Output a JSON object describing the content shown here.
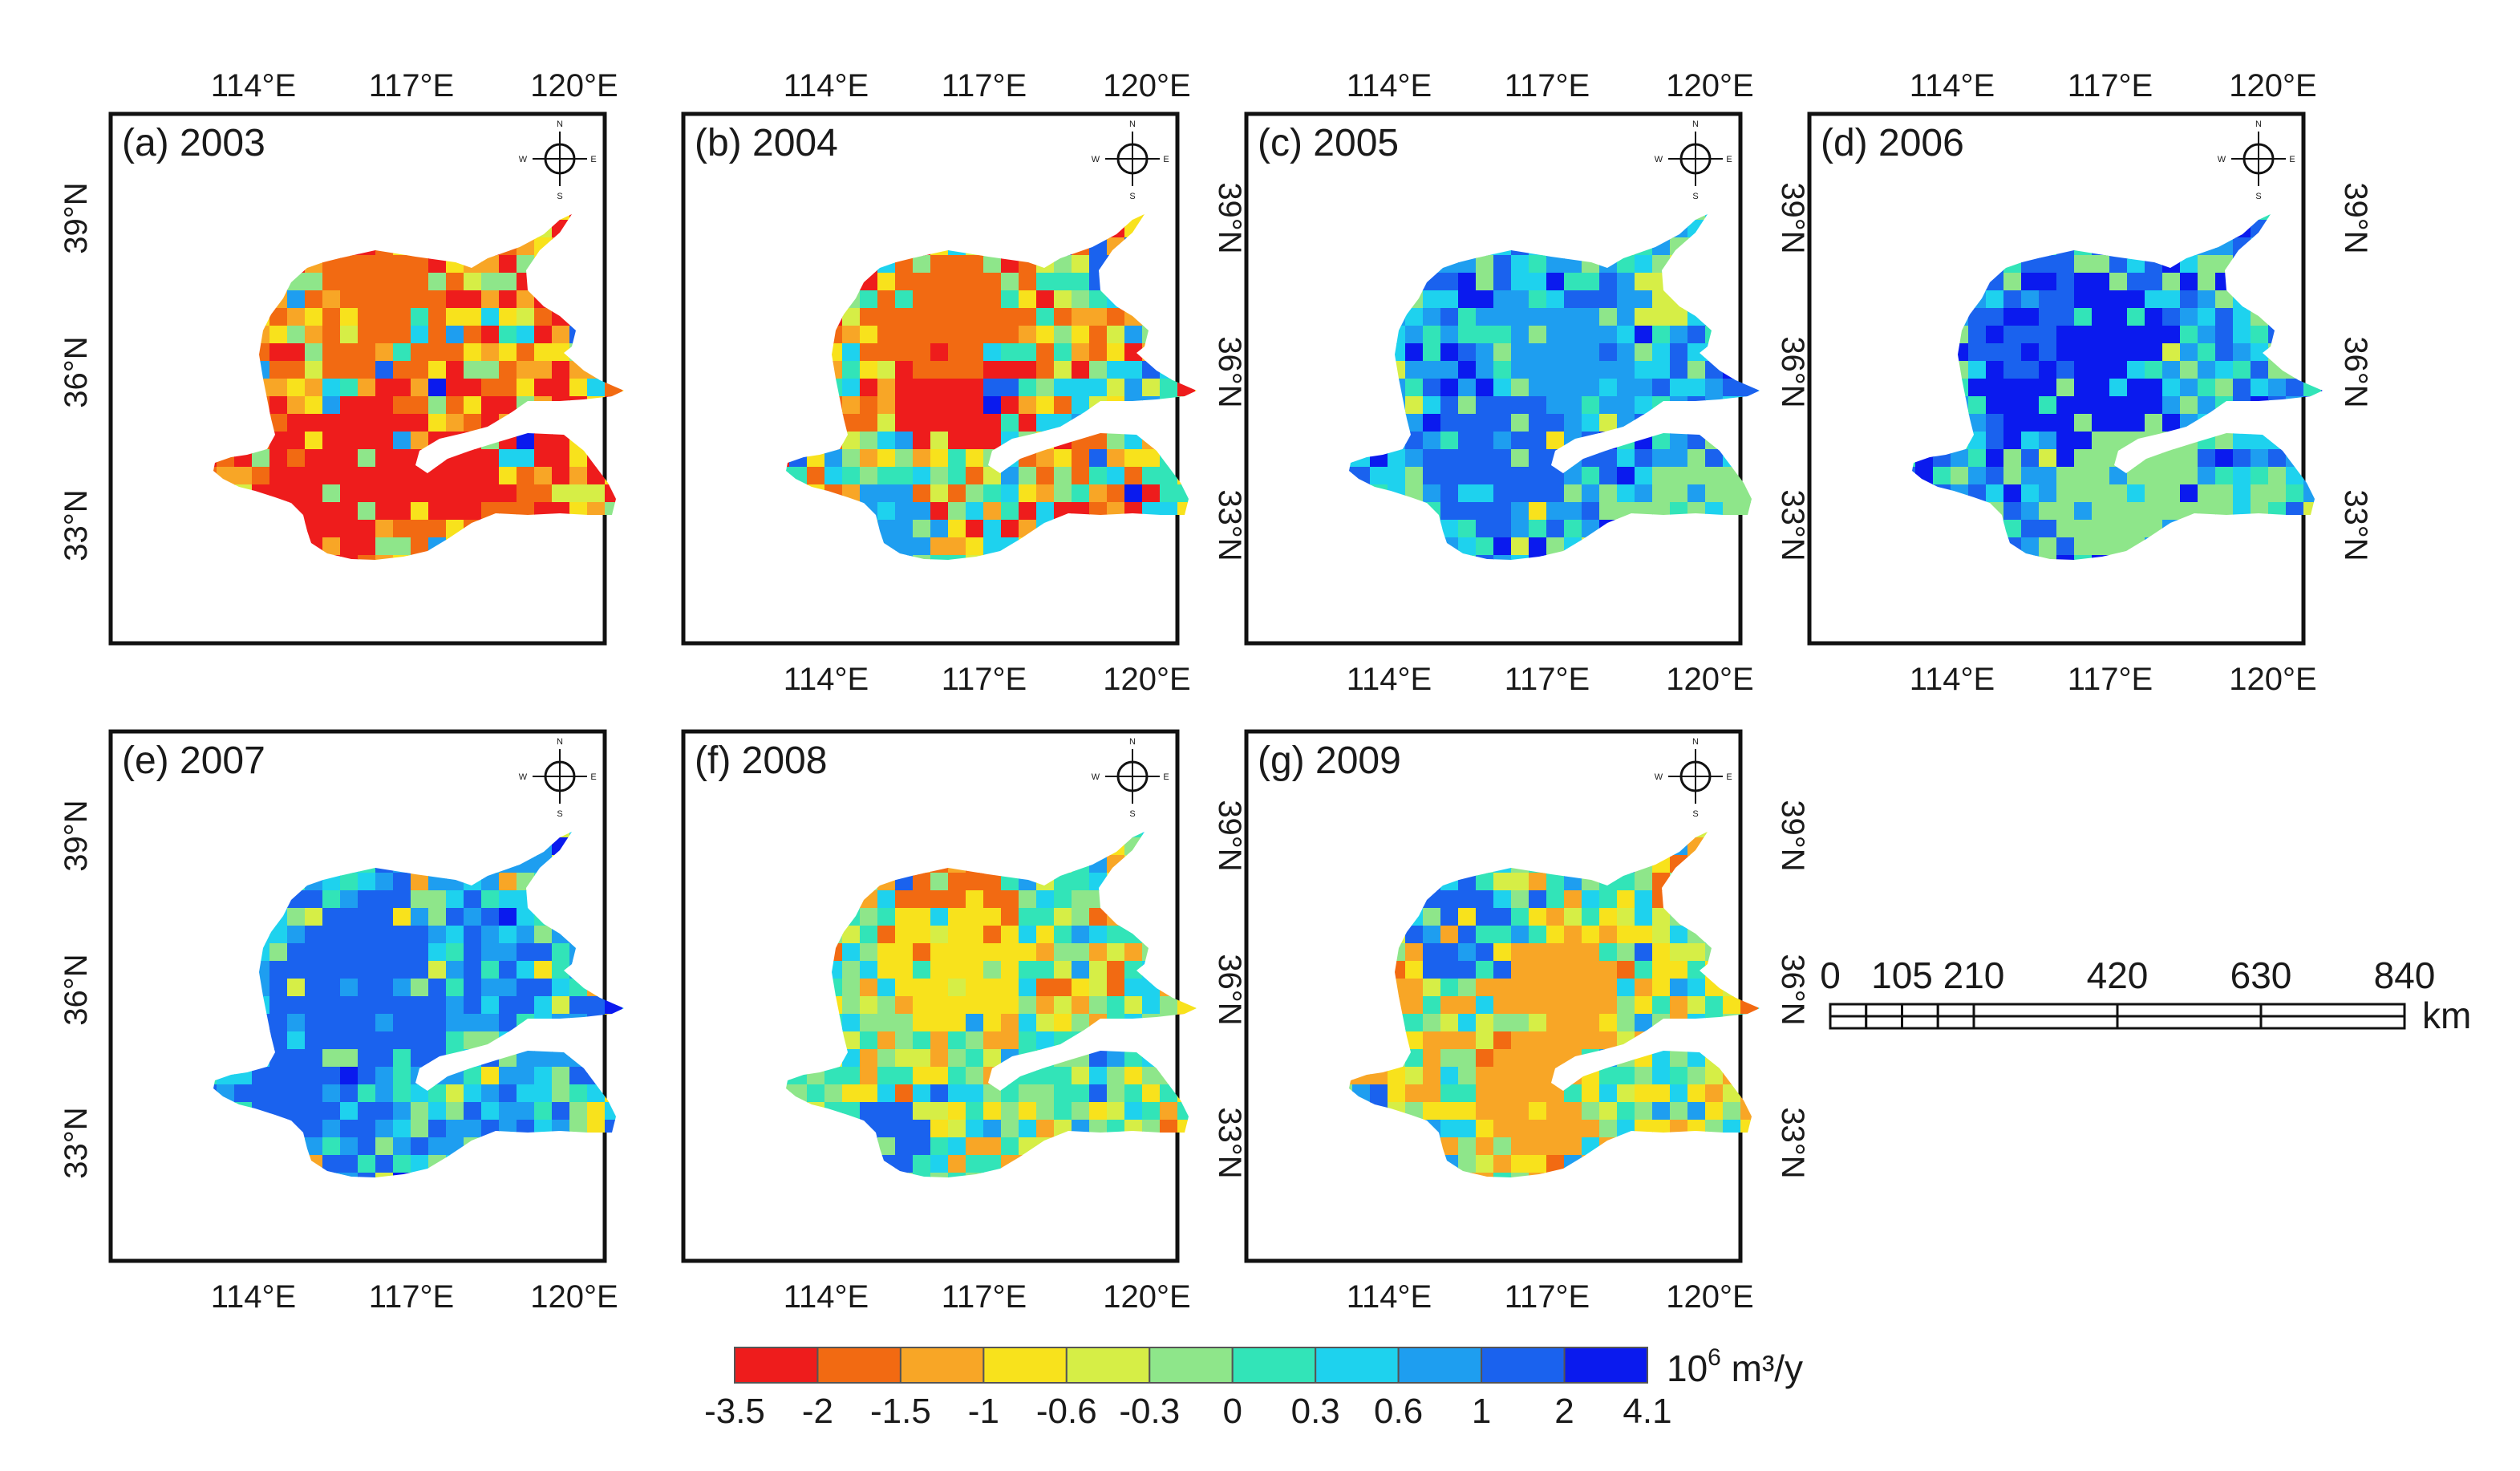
{
  "panels": [
    {
      "label": "(a) 2003",
      "palette": "a"
    },
    {
      "label": "(b) 2004",
      "palette": "b"
    },
    {
      "label": "(c) 2005",
      "palette": "c"
    },
    {
      "label": "(d) 2006",
      "palette": "d"
    },
    {
      "label": "(e) 2007",
      "palette": "e"
    },
    {
      "label": "(f) 2008",
      "palette": "f"
    },
    {
      "label": "(g) 2009",
      "palette": "g"
    }
  ],
  "axes": {
    "lon_ticks": [
      "114°E",
      "117°E",
      "120°E"
    ],
    "lat_ticks": [
      "39°N",
      "36°N",
      "33°N"
    ]
  },
  "compass": {
    "n": "N",
    "s": "S",
    "e": "E",
    "w": "W"
  },
  "legend": {
    "unit_base": "10",
    "unit_exp": "6",
    "unit_rest": " m³/y",
    "tick_labels": [
      "-3.5",
      "-2",
      "-1.5",
      "-1",
      "-0.6",
      "-0.3",
      "0",
      "0.3",
      "0.6",
      "1",
      "2",
      "4.1"
    ],
    "colors": [
      "#ee1c1c",
      "#f26a12",
      "#f8a626",
      "#f8e21c",
      "#d6ee46",
      "#8ee68a",
      "#32e4b8",
      "#1ed2ee",
      "#1e9ef0",
      "#1a62ee",
      "#0a1aee"
    ]
  },
  "scale_bar": {
    "labels": [
      "0",
      "105",
      "210",
      "420",
      "630",
      "840"
    ],
    "unit": "km"
  }
}
